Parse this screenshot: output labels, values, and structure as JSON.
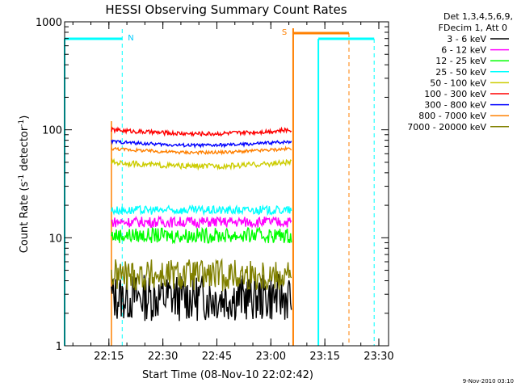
{
  "chart_data": {
    "type": "line",
    "title": "HESSI Observing Summary Count Rates",
    "xlabel": "Start Time (08-Nov-10 22:02:42)",
    "ylabel_main": "Count Rate (s",
    "ylabel_sup1": "-1",
    "ylabel_mid": " detector",
    "ylabel_sup2": "-1",
    "ylabel_end": ")",
    "y_scale": "log",
    "ylim": [
      1,
      1000
    ],
    "xlim_minutes": [
      0,
      90
    ],
    "x_ticks": [
      "22:15",
      "22:30",
      "22:45",
      "23:00",
      "23:15",
      "23:30"
    ],
    "x_tick_minutes": [
      12.3,
      27.3,
      42.3,
      57.3,
      72.3,
      87.3
    ],
    "y_ticks": [
      "1",
      "10",
      "100",
      "1000"
    ],
    "y_tick_values": [
      1,
      10,
      100,
      1000
    ],
    "legend_header": [
      "Det 1,3,4,5,6,9,",
      "FDecim 1, Att 0"
    ],
    "legend_position": "right",
    "data_window_minutes": [
      13,
      63
    ],
    "series": [
      {
        "name": "3 - 6 keV",
        "color": "#000000",
        "level": 2.8,
        "noise": 0.22
      },
      {
        "name": "6 - 12 keV",
        "color": "#ff00ff",
        "level": 14,
        "noise": 0.05
      },
      {
        "name": "12 - 25 keV",
        "color": "#00ff00",
        "level": 10.5,
        "noise": 0.07
      },
      {
        "name": "25 - 50 keV",
        "color": "#00ffff",
        "level": 18,
        "noise": 0.04
      },
      {
        "name": "50 - 100 keV",
        "color": "#cccc00",
        "level": 50,
        "noise": 0.025
      },
      {
        "name": "100 - 300 keV",
        "color": "#ff0000",
        "level": 100,
        "noise": 0.02
      },
      {
        "name": "300 - 800 keV",
        "color": "#0000ff",
        "level": 78,
        "noise": 0.015
      },
      {
        "name": "800 - 7000 keV",
        "color": "#ff8000",
        "level": 67,
        "noise": 0.015
      },
      {
        "name": "7000 - 20000 keV",
        "color": "#808000",
        "level": 4.5,
        "noise": 0.15
      }
    ],
    "annotations": [
      {
        "label": "N",
        "color": "#00ccff",
        "minute": 16
      },
      {
        "label": "S",
        "color": "#ff8000",
        "minute": 63.5
      }
    ],
    "footer_date": "9-Nov-2010 03:10"
  }
}
